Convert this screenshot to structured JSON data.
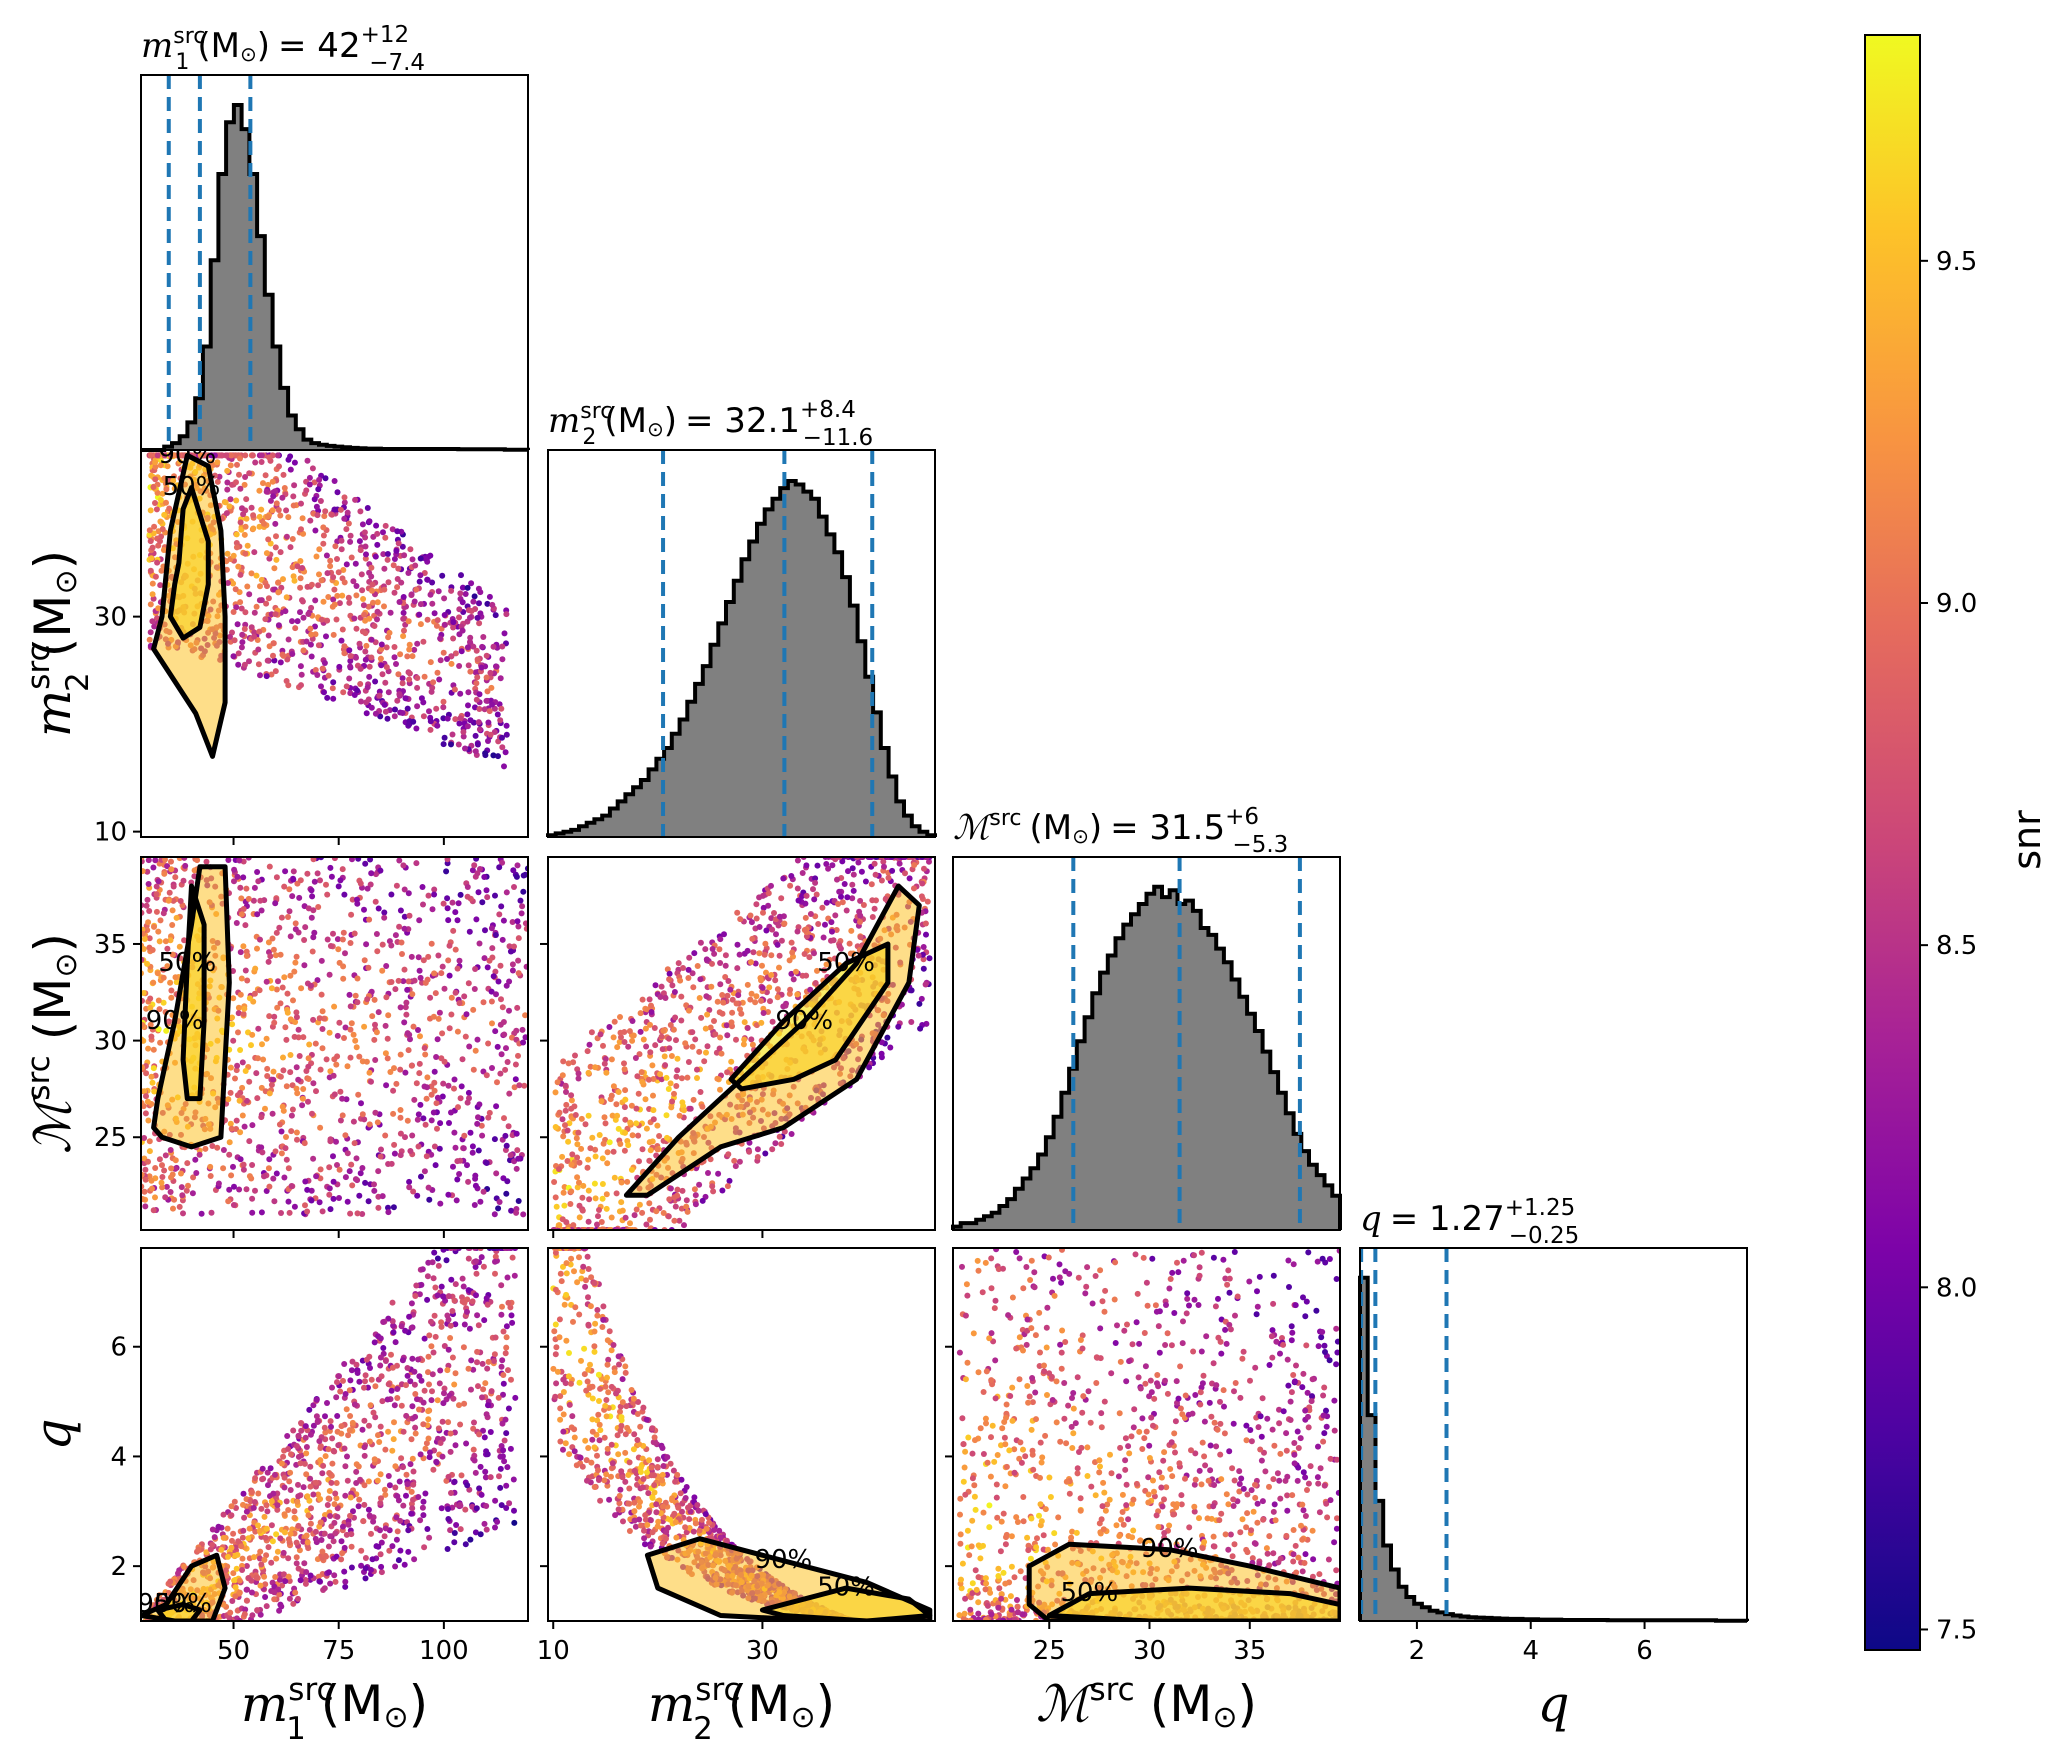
{
  "chart_data": {
    "type": "corner",
    "colorbar": {
      "label": "snr",
      "range": [
        7.47,
        9.83
      ],
      "ticks": [
        "7.5",
        "8.0",
        "8.5",
        "9.0",
        "9.5"
      ],
      "tick_values": [
        7.5,
        8.0,
        8.5,
        9.0,
        9.5
      ],
      "colormap": "plasma"
    },
    "histogram_color": "#808080",
    "quantile_line_color": "#1f77b4",
    "contour_color": "#000000",
    "contour_labels": [
      "50%",
      "90%"
    ],
    "parameters": [
      {
        "key": "m1",
        "label_sym": "m",
        "label_sub": "1",
        "label_sup": "src",
        "label_unit": "(M",
        "title_sym": "m",
        "title_sub": "1",
        "title_sup": "src",
        "title_unit": "(M",
        "title_median": "42",
        "title_plus": "+12",
        "title_minus": "−7.4",
        "range": [
          28,
          120
        ],
        "ticks": [
          "50",
          "75",
          "100"
        ],
        "tick_values": [
          50,
          75,
          100
        ],
        "median": 42,
        "q_low": 34.6,
        "q_high": 54,
        "hist": [
          0,
          0,
          0,
          1,
          2,
          4,
          8,
          15,
          30,
          55,
          80,
          95,
          100,
          93,
          80,
          62,
          45,
          30,
          18,
          10,
          6,
          3,
          2,
          1.5,
          1.2,
          1,
          0.8,
          0.6,
          0.5,
          0.4,
          0.4,
          0.3,
          0.3,
          0.3,
          0.3,
          0.3,
          0.3,
          0.3,
          0.3,
          0.3,
          0.3,
          0.2,
          0.2,
          0.2,
          0.2,
          0.2,
          0.2,
          0.1,
          0.1,
          0.1
        ]
      },
      {
        "key": "m2",
        "label_sym": "m",
        "label_sub": "2",
        "label_sup": "src",
        "label_unit": "(M",
        "title_sym": "m",
        "title_sub": "2",
        "title_sup": "src",
        "title_unit": "(M",
        "title_median": "32.1",
        "title_plus": "+8.4",
        "title_minus": "−11.6",
        "range": [
          9.5,
          46.5
        ],
        "ticks": [
          "10",
          "30"
        ],
        "tick_values": [
          10,
          30
        ],
        "y_ticks": [
          "10",
          "30"
        ],
        "y_tick_values": [
          10,
          30
        ],
        "y_range": [
          9.5,
          45.5
        ],
        "median": 32.1,
        "q_low": 20.5,
        "q_high": 40.5,
        "hist": [
          0.5,
          1,
          1.5,
          2,
          3,
          4,
          5,
          6,
          8,
          10,
          12,
          14,
          16,
          19,
          22,
          25,
          29,
          33,
          38,
          43,
          48,
          54,
          60,
          66,
          72,
          78,
          83,
          88,
          92,
          95,
          98,
          100,
          99,
          97,
          95,
          90,
          85,
          80,
          73,
          65,
          55,
          45,
          35,
          25,
          17,
          10,
          6,
          3,
          1.5,
          0.5
        ]
      },
      {
        "key": "mc",
        "label_sym": "ℳ",
        "label_sub": "",
        "label_sup": "src",
        "label_unit": "(M",
        "title_sym": "ℳ",
        "title_sub": "",
        "title_sup": "src",
        "title_unit": "(M",
        "title_median": "31.5",
        "title_plus": "+6",
        "title_minus": "−5.3",
        "range": [
          20.2,
          39.5
        ],
        "ticks": [
          "25",
          "30",
          "35"
        ],
        "tick_values": [
          25,
          30,
          35
        ],
        "y_ticks": [
          "25",
          "30",
          "35"
        ],
        "y_tick_values": [
          25,
          30,
          35
        ],
        "median": 31.5,
        "q_low": 26.2,
        "q_high": 37.5,
        "hist": [
          1,
          2,
          2,
          3,
          4,
          5,
          7,
          9,
          12,
          15,
          18,
          22,
          27,
          33,
          40,
          47,
          55,
          62,
          69,
          75,
          80,
          85,
          89,
          92,
          95,
          98,
          100,
          97,
          99,
          95,
          96,
          93,
          88,
          86,
          82,
          78,
          73,
          68,
          63,
          58,
          52,
          46,
          40,
          34,
          28,
          23,
          19,
          16,
          13,
          10
        ]
      },
      {
        "key": "q",
        "label_sym": "q",
        "label_sub": "",
        "label_sup": "",
        "label_unit": "",
        "title_sym": "q",
        "title_sub": "",
        "title_sup": "",
        "title_unit": "",
        "title_median": "1.27",
        "title_plus": "+1.25",
        "title_minus": "−0.25",
        "range": [
          1,
          7.8
        ],
        "ticks": [
          "2",
          "4",
          "6"
        ],
        "tick_values": [
          2,
          4,
          6
        ],
        "y_ticks": [
          "2",
          "4",
          "6"
        ],
        "y_tick_values": [
          2,
          4,
          6
        ],
        "median": 1.27,
        "q_low": 1.02,
        "q_high": 2.52,
        "hist": [
          100,
          60,
          35,
          22,
          15,
          10,
          7,
          5,
          4,
          3,
          2.5,
          2,
          1.6,
          1.3,
          1.1,
          1,
          0.9,
          0.8,
          0.7,
          0.6,
          0.6,
          0.5,
          0.5,
          0.4,
          0.4,
          0.4,
          0.3,
          0.3,
          0.3,
          0.3,
          0.3,
          0.3,
          0.2,
          0.2,
          0.2,
          0.2,
          0.2,
          0.2,
          0.2,
          0.2,
          0.2,
          0.2,
          0.2,
          0.2,
          0.2,
          0.2,
          0.1,
          0.1,
          0.1,
          0.1
        ]
      }
    ],
    "scatter_pairs": [
      {
        "x": "m1",
        "y": "m2",
        "contours": [
          {
            "label": "50%",
            "points": [
              [
                37,
                35
              ],
              [
                38,
                40
              ],
              [
                40,
                42
              ],
              [
                44,
                37
              ],
              [
                44,
                33
              ],
              [
                42,
                29
              ],
              [
                38,
                28
              ],
              [
                35,
                30
              ],
              [
                36,
                33
              ]
            ]
          },
          {
            "label": "90%",
            "points": [
              [
                33,
                30
              ],
              [
                35,
                38
              ],
              [
                39,
                45
              ],
              [
                44,
                44
              ],
              [
                47,
                38
              ],
              [
                48,
                30
              ],
              [
                48,
                22
              ],
              [
                45,
                17
              ],
              [
                41,
                21
              ],
              [
                36,
                24
              ],
              [
                31,
                27
              ]
            ]
          }
        ]
      },
      {
        "x": "m1",
        "y": "mc",
        "contours": [
          {
            "label": "50%",
            "points": [
              [
                38,
                29
              ],
              [
                39,
                34
              ],
              [
                40,
                38
              ],
              [
                43,
                36
              ],
              [
                43,
                31
              ],
              [
                42,
                27
              ],
              [
                39,
                27
              ]
            ]
          },
          {
            "label": "90%",
            "points": [
              [
                31,
                25.5
              ],
              [
                32,
                27
              ],
              [
                36,
                31
              ],
              [
                40,
                36
              ],
              [
                42,
                39
              ],
              [
                48,
                39
              ],
              [
                49,
                33
              ],
              [
                48,
                29
              ],
              [
                47,
                25
              ],
              [
                40,
                24.5
              ],
              [
                33,
                25
              ]
            ]
          }
        ]
      },
      {
        "x": "m1",
        "y": "q",
        "contours": [
          {
            "label": "50%",
            "points": [
              [
                32,
                1.2
              ],
              [
                38,
                1.3
              ],
              [
                42,
                1.2
              ],
              [
                40,
                1
              ],
              [
                34,
                1
              ]
            ]
          },
          {
            "label": "90%",
            "points": [
              [
                28,
                1.1
              ],
              [
                34,
                1.3
              ],
              [
                40,
                2
              ],
              [
                46,
                2.2
              ],
              [
                48,
                1.6
              ],
              [
                45,
                1
              ],
              [
                36,
                1
              ]
            ]
          }
        ]
      },
      {
        "x": "m2",
        "y": "mc",
        "contours": [
          {
            "label": "50%",
            "points": [
              [
                27,
                28
              ],
              [
                32,
                31
              ],
              [
                38,
                34
              ],
              [
                42,
                35
              ],
              [
                42,
                33
              ],
              [
                37,
                29
              ],
              [
                33,
                28
              ],
              [
                28,
                27.5
              ]
            ]
          },
          {
            "label": "90%",
            "points": [
              [
                17,
                22
              ],
              [
                22,
                25
              ],
              [
                28,
                28
              ],
              [
                34,
                31
              ],
              [
                39,
                34
              ],
              [
                43,
                38
              ],
              [
                45,
                37
              ],
              [
                44,
                33
              ],
              [
                39,
                28
              ],
              [
                32,
                25.5
              ],
              [
                26,
                24.5
              ],
              [
                19,
                22
              ]
            ]
          }
        ]
      },
      {
        "x": "m2",
        "y": "q",
        "contours": [
          {
            "label": "50%",
            "points": [
              [
                30,
                1.2
              ],
              [
                38,
                1.6
              ],
              [
                44,
                1.4
              ],
              [
                46,
                1.1
              ],
              [
                40,
                1
              ],
              [
                32,
                1.1
              ]
            ]
          },
          {
            "label": "90%",
            "points": [
              [
                19,
                2.2
              ],
              [
                24,
                2.5
              ],
              [
                32,
                2.1
              ],
              [
                40,
                1.7
              ],
              [
                46,
                1.2
              ],
              [
                46,
                1
              ],
              [
                36,
                1
              ],
              [
                26,
                1.1
              ],
              [
                20,
                1.6
              ]
            ]
          }
        ]
      },
      {
        "x": "mc",
        "y": "q",
        "contours": [
          {
            "label": "50%",
            "points": [
              [
                25,
                1.1
              ],
              [
                27,
                1.5
              ],
              [
                32,
                1.6
              ],
              [
                37,
                1.5
              ],
              [
                39.5,
                1.3
              ],
              [
                39.5,
                1
              ],
              [
                30,
                1
              ]
            ]
          },
          {
            "label": "90%",
            "points": [
              [
                24,
                2
              ],
              [
                26,
                2.4
              ],
              [
                31,
                2.3
              ],
              [
                35,
                2.0
              ],
              [
                39.5,
                1.6
              ],
              [
                39.5,
                1
              ],
              [
                25,
                1
              ],
              [
                24,
                1.3
              ]
            ]
          }
        ]
      }
    ]
  }
}
